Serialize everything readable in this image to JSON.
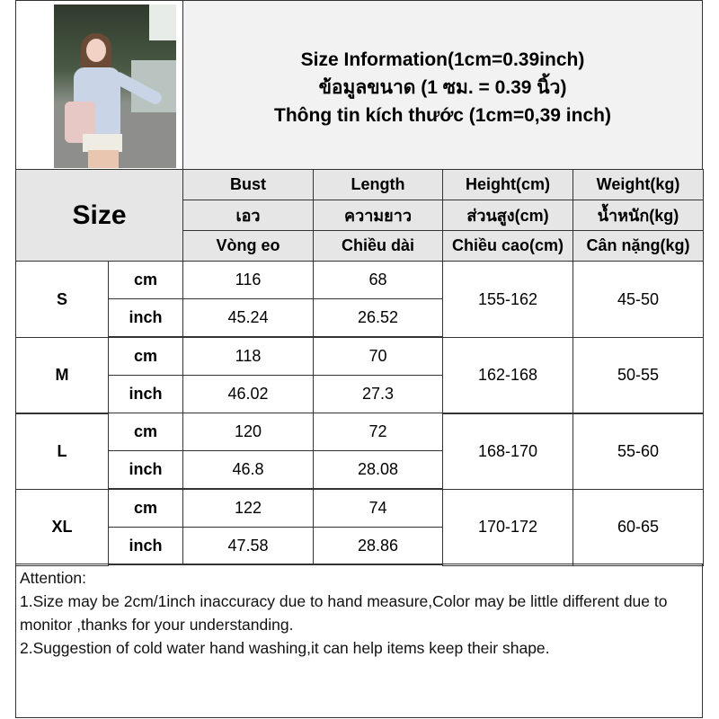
{
  "title_lines": [
    "Size Information(1cm=0.39inch)",
    "ข้อมูลขนาด (1 ซม. = 0.39 นิ้ว)",
    "Thông tin kích thước (1cm=0,39 inch)"
  ],
  "size_label": "Size",
  "headers": [
    [
      "Bust",
      "Length",
      "Height(cm)",
      "Weight(kg)"
    ],
    [
      "เอว",
      "ความยาว",
      "ส่วนสูง(cm)",
      "น้ำหนัก(kg)"
    ],
    [
      "Vòng eo",
      "Chiều dài",
      "Chiều cao(cm)",
      "Cân nặng(kg)"
    ]
  ],
  "rows": [
    {
      "size": "S",
      "cm": {
        "unit": "cm",
        "bust": "116",
        "length": "68"
      },
      "inch": {
        "unit": "inch",
        "bust": "45.24",
        "length": "26.52"
      },
      "height": "155-162",
      "weight": "45-50"
    },
    {
      "size": "M",
      "cm": {
        "unit": "cm",
        "bust": "118",
        "length": "70"
      },
      "inch": {
        "unit": "inch",
        "bust": "46.02",
        "length": "27.3"
      },
      "height": "162-168",
      "weight": "50-55"
    },
    {
      "size": "L",
      "cm": {
        "unit": "cm",
        "bust": "120",
        "length": "72"
      },
      "inch": {
        "unit": "inch",
        "bust": "46.8",
        "length": "28.08"
      },
      "height": "168-170",
      "weight": "55-60"
    },
    {
      "size": "XL",
      "cm": {
        "unit": "cm",
        "bust": "122",
        "length": "74"
      },
      "inch": {
        "unit": "inch",
        "bust": "47.58",
        "length": "28.86"
      },
      "height": "170-172",
      "weight": "60-65"
    }
  ],
  "attention": {
    "heading": "Attention:",
    "lines": [
      "1.Size may be 2cm/1inch inaccuracy due to hand measure,Color may be little different due to monitor ,thanks for your understanding.",
      "2.Suggestion of cold water hand washing,it can help items keep their shape."
    ]
  }
}
